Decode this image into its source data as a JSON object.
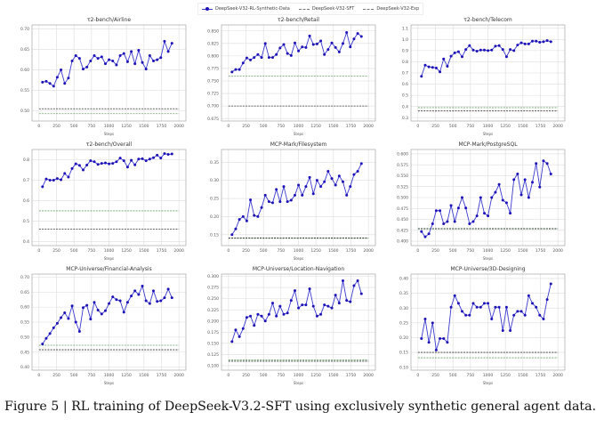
{
  "legend": {
    "main": "DeepSeek-V32-RL-Synthetic-Data",
    "sft": "DeepSeek-V32-SFT",
    "exp": "DeepSeek-V32-Exp"
  },
  "caption": "Figure 5 | RL training of DeepSeek-V3.2-SFT using exclusively synthetic general agent data.",
  "colors": {
    "main_line": "#3a3acf",
    "main_marker": "#1d12b8",
    "sft": "#333333",
    "exp": "#6aa06a",
    "grid": "#dddddd"
  },
  "chart_data": [
    {
      "type": "line",
      "title": "τ2-bench/Airline",
      "xlabel": "Steps",
      "xlim": [
        -100,
        2100
      ],
      "xticks": [
        0,
        250,
        500,
        750,
        1000,
        1250,
        1500,
        1750,
        2000
      ],
      "ylim": [
        0.475,
        0.71
      ],
      "yticks": [
        0.5,
        0.55,
        0.6,
        0.65,
        0.7
      ],
      "ydec": 2,
      "grid": true,
      "x": [
        50,
        103,
        156,
        209,
        261,
        314,
        367,
        420,
        473,
        526,
        579,
        631,
        684,
        737,
        790,
        843,
        896,
        949,
        1001,
        1054,
        1107,
        1160,
        1213,
        1266,
        1319,
        1371,
        1424,
        1477,
        1530,
        1583,
        1636,
        1689,
        1741,
        1794,
        1847,
        1900
      ],
      "series": [
        {
          "name": "DeepSeek-V32-RL-Synthetic-Data",
          "values": [
            0.57,
            0.572,
            0.567,
            0.56,
            0.582,
            0.6,
            0.567,
            0.58,
            0.622,
            0.635,
            0.628,
            0.602,
            0.607,
            0.622,
            0.635,
            0.628,
            0.632,
            0.615,
            0.625,
            0.622,
            0.612,
            0.635,
            0.64,
            0.62,
            0.645,
            0.615,
            0.648,
            0.618,
            0.602,
            0.635,
            0.622,
            0.625,
            0.63,
            0.67,
            0.645,
            0.665
          ]
        }
      ],
      "baselines": {
        "sft": 0.505,
        "exp": 0.493
      }
    },
    {
      "type": "line",
      "title": "τ2-bench/Retail",
      "xlabel": "Steps",
      "xlim": [
        -100,
        2100
      ],
      "xticks": [
        0,
        250,
        500,
        750,
        1000,
        1250,
        1500,
        1750,
        2000
      ],
      "ylim": [
        0.67,
        0.862
      ],
      "yticks": [
        0.675,
        0.7,
        0.725,
        0.75,
        0.775,
        0.8,
        0.825,
        0.85
      ],
      "ydec": 3,
      "grid": true,
      "x": [
        50,
        103,
        156,
        209,
        261,
        314,
        367,
        420,
        473,
        526,
        579,
        631,
        684,
        737,
        790,
        843,
        896,
        949,
        1001,
        1054,
        1107,
        1160,
        1213,
        1266,
        1319,
        1371,
        1424,
        1477,
        1530,
        1583,
        1636,
        1689,
        1741,
        1794,
        1847,
        1900
      ],
      "series": [
        {
          "name": "DeepSeek-V32-RL-Synthetic-Data",
          "values": [
            0.768,
            0.773,
            0.773,
            0.786,
            0.796,
            0.792,
            0.797,
            0.803,
            0.797,
            0.825,
            0.797,
            0.797,
            0.803,
            0.816,
            0.823,
            0.805,
            0.801,
            0.826,
            0.81,
            0.818,
            0.817,
            0.84,
            0.823,
            0.824,
            0.83,
            0.803,
            0.813,
            0.826,
            0.817,
            0.808,
            0.825,
            0.847,
            0.818,
            0.834,
            0.845,
            0.839
          ]
        }
      ],
      "baselines": {
        "sft": 0.7,
        "exp": 0.76
      }
    },
    {
      "type": "line",
      "title": "τ2-bench/Telecom",
      "xlabel": "Steps",
      "xlim": [
        -100,
        2100
      ],
      "xticks": [
        0,
        250,
        500,
        750,
        1000,
        1250,
        1500,
        1750,
        2000
      ],
      "ylim": [
        0.27,
        1.13
      ],
      "yticks": [
        0.3,
        0.4,
        0.5,
        0.6,
        0.7,
        0.8,
        0.9,
        1.0,
        1.1
      ],
      "ydec": 1,
      "grid": true,
      "x": [
        50,
        103,
        156,
        209,
        261,
        314,
        367,
        420,
        473,
        526,
        579,
        631,
        684,
        737,
        790,
        843,
        896,
        949,
        1001,
        1054,
        1107,
        1160,
        1213,
        1266,
        1319,
        1371,
        1424,
        1477,
        1530,
        1583,
        1636,
        1689,
        1741,
        1794,
        1847,
        1900
      ],
      "series": [
        {
          "name": "DeepSeek-V32-RL-Synthetic-Data",
          "values": [
            0.67,
            0.77,
            0.755,
            0.75,
            0.745,
            0.71,
            0.825,
            0.76,
            0.85,
            0.88,
            0.89,
            0.845,
            0.91,
            0.945,
            0.905,
            0.895,
            0.905,
            0.905,
            0.9,
            0.905,
            0.94,
            0.945,
            0.91,
            0.845,
            0.91,
            0.9,
            0.95,
            0.97,
            0.96,
            0.96,
            0.985,
            0.985,
            0.975,
            0.98,
            0.99,
            0.98
          ]
        }
      ],
      "baselines": {
        "sft": 0.36,
        "exp": 0.39
      }
    },
    {
      "type": "line",
      "title": "τ2-bench/Overall",
      "xlabel": "Steps",
      "xlim": [
        -100,
        2100
      ],
      "xticks": [
        0,
        250,
        500,
        750,
        1000,
        1250,
        1500,
        1750,
        2000
      ],
      "ylim": [
        0.38,
        0.85
      ],
      "yticks": [
        0.4,
        0.5,
        0.6,
        0.7,
        0.8
      ],
      "ydec": 1,
      "grid": true,
      "x": [
        50,
        103,
        156,
        209,
        261,
        314,
        367,
        420,
        473,
        526,
        579,
        631,
        684,
        737,
        790,
        843,
        896,
        949,
        1001,
        1054,
        1107,
        1160,
        1213,
        1266,
        1319,
        1371,
        1424,
        1477,
        1530,
        1583,
        1636,
        1689,
        1741,
        1794,
        1847,
        1900
      ],
      "series": [
        {
          "name": "DeepSeek-V32-RL-Synthetic-Data",
          "values": [
            0.668,
            0.706,
            0.7,
            0.7,
            0.708,
            0.702,
            0.733,
            0.715,
            0.757,
            0.78,
            0.772,
            0.75,
            0.774,
            0.795,
            0.79,
            0.777,
            0.782,
            0.784,
            0.78,
            0.782,
            0.79,
            0.808,
            0.795,
            0.764,
            0.797,
            0.775,
            0.803,
            0.805,
            0.795,
            0.803,
            0.81,
            0.822,
            0.808,
            0.83,
            0.826,
            0.828
          ]
        }
      ],
      "baselines": {
        "sft": 0.46,
        "exp": 0.55
      }
    },
    {
      "type": "line",
      "title": "MCP-Mark/Filesystem",
      "xlabel": "Steps",
      "xlim": [
        -100,
        2100
      ],
      "xticks": [
        0,
        250,
        500,
        750,
        1000,
        1250,
        1500,
        1750,
        2000
      ],
      "ylim": [
        0.12,
        0.385
      ],
      "yticks": [
        0.15,
        0.2,
        0.25,
        0.3,
        0.35
      ],
      "ydec": 2,
      "grid": true,
      "x": [
        50,
        103,
        156,
        209,
        261,
        314,
        367,
        420,
        473,
        526,
        579,
        631,
        684,
        737,
        790,
        843,
        896,
        949,
        1001,
        1054,
        1107,
        1160,
        1213,
        1266,
        1319,
        1371,
        1424,
        1477,
        1530,
        1583,
        1636,
        1689,
        1741,
        1794,
        1847,
        1900
      ],
      "series": [
        {
          "name": "DeepSeek-V32-RL-Synthetic-Data",
          "values": [
            0.15,
            0.166,
            0.192,
            0.2,
            0.188,
            0.246,
            0.203,
            0.2,
            0.225,
            0.259,
            0.241,
            0.238,
            0.275,
            0.241,
            0.283,
            0.241,
            0.245,
            0.259,
            0.287,
            0.259,
            0.283,
            0.308,
            0.263,
            0.3,
            0.283,
            0.296,
            0.325,
            0.305,
            0.287,
            0.312,
            0.296,
            0.259,
            0.283,
            0.316,
            0.325,
            0.346
          ]
        }
      ],
      "baselines": {
        "sft": 0.141,
        "exp": 0.14
      }
    },
    {
      "type": "line",
      "title": "MCP-Mark/PostgreSQL",
      "xlabel": "Steps",
      "xlim": [
        -100,
        2100
      ],
      "xticks": [
        0,
        250,
        500,
        750,
        1000,
        1250,
        1500,
        1750,
        2000
      ],
      "ylim": [
        0.39,
        0.61
      ],
      "yticks": [
        0.4,
        0.425,
        0.45,
        0.475,
        0.5,
        0.525,
        0.55,
        0.575,
        0.6
      ],
      "ydec": 3,
      "grid": true,
      "x": [
        50,
        103,
        156,
        209,
        261,
        314,
        367,
        420,
        473,
        526,
        579,
        631,
        684,
        737,
        790,
        843,
        896,
        949,
        1001,
        1054,
        1107,
        1160,
        1213,
        1266,
        1319,
        1371,
        1424,
        1477,
        1530,
        1583,
        1636,
        1689,
        1741,
        1794,
        1847,
        1900
      ],
      "series": [
        {
          "name": "DeepSeek-V32-RL-Synthetic-Data",
          "values": [
            0.422,
            0.41,
            0.417,
            0.44,
            0.47,
            0.47,
            0.44,
            0.445,
            0.482,
            0.445,
            0.476,
            0.5,
            0.476,
            0.44,
            0.445,
            0.458,
            0.5,
            0.464,
            0.458,
            0.5,
            0.512,
            0.53,
            0.494,
            0.488,
            0.464,
            0.541,
            0.554,
            0.506,
            0.541,
            0.5,
            0.535,
            0.578,
            0.524,
            0.584,
            0.578,
            0.554
          ]
        }
      ],
      "baselines": {
        "sft": 0.429,
        "exp": 0.428
      }
    },
    {
      "type": "line",
      "title": "MCP-Universe/Financial-Analysis",
      "xlabel": "Steps",
      "xlim": [
        -100,
        2100
      ],
      "xticks": [
        0,
        250,
        500,
        750,
        1000,
        1250,
        1500,
        1750,
        2000
      ],
      "ylim": [
        0.39,
        0.71
      ],
      "yticks": [
        0.4,
        0.45,
        0.5,
        0.55,
        0.6,
        0.65,
        0.7
      ],
      "ydec": 2,
      "grid": true,
      "x": [
        50,
        103,
        156,
        209,
        261,
        314,
        367,
        420,
        473,
        526,
        579,
        631,
        684,
        737,
        790,
        843,
        896,
        949,
        1001,
        1054,
        1107,
        1160,
        1213,
        1266,
        1319,
        1371,
        1424,
        1477,
        1530,
        1583,
        1636,
        1689,
        1741,
        1794,
        1847,
        1900
      ],
      "series": [
        {
          "name": "DeepSeek-V32-RL-Synthetic-Data",
          "values": [
            0.477,
            0.496,
            0.512,
            0.531,
            0.546,
            0.565,
            0.581,
            0.562,
            0.604,
            0.55,
            0.519,
            0.598,
            0.606,
            0.56,
            0.616,
            0.59,
            0.577,
            0.588,
            0.612,
            0.634,
            0.625,
            0.621,
            0.583,
            0.616,
            0.637,
            0.654,
            0.642,
            0.67,
            0.621,
            0.612,
            0.654,
            0.619,
            0.621,
            0.631,
            0.66,
            0.631
          ]
        }
      ],
      "baselines": {
        "sft": 0.458,
        "exp": 0.473
      }
    },
    {
      "type": "line",
      "title": "MCP-Universe/Location-Navigation",
      "xlabel": "Steps",
      "xlim": [
        -100,
        2100
      ],
      "xticks": [
        0,
        250,
        500,
        750,
        1000,
        1250,
        1500,
        1750,
        2000
      ],
      "ylim": [
        0.09,
        0.305
      ],
      "yticks": [
        0.1,
        0.125,
        0.15,
        0.175,
        0.2,
        0.225,
        0.25,
        0.275,
        0.3
      ],
      "ydec": 3,
      "grid": true,
      "x": [
        50,
        103,
        156,
        209,
        261,
        314,
        367,
        420,
        473,
        526,
        579,
        631,
        684,
        737,
        790,
        843,
        896,
        949,
        1001,
        1054,
        1107,
        1160,
        1213,
        1266,
        1319,
        1371,
        1424,
        1477,
        1530,
        1583,
        1636,
        1689,
        1741,
        1794,
        1847,
        1900
      ],
      "series": [
        {
          "name": "DeepSeek-V32-RL-Synthetic-Data",
          "values": [
            0.154,
            0.18,
            0.165,
            0.183,
            0.208,
            0.211,
            0.19,
            0.215,
            0.211,
            0.2,
            0.215,
            0.24,
            0.211,
            0.233,
            0.215,
            0.218,
            0.246,
            0.268,
            0.229,
            0.236,
            0.236,
            0.272,
            0.233,
            0.211,
            0.215,
            0.236,
            0.233,
            0.229,
            0.258,
            0.24,
            0.29,
            0.246,
            0.243,
            0.279,
            0.29,
            0.261
          ]
        }
      ],
      "baselines": {
        "sft": 0.11,
        "exp": 0.113
      }
    },
    {
      "type": "line",
      "title": "MCP-Universe/3D-Designing",
      "xlabel": "Steps",
      "xlim": [
        -100,
        2100
      ],
      "xticks": [
        0,
        250,
        500,
        750,
        1000,
        1250,
        1500,
        1750,
        2000
      ],
      "ylim": [
        0.09,
        0.415
      ],
      "yticks": [
        0.1,
        0.15,
        0.2,
        0.25,
        0.3,
        0.35,
        0.4
      ],
      "ydec": 2,
      "grid": true,
      "x": [
        50,
        103,
        156,
        209,
        261,
        314,
        367,
        420,
        473,
        526,
        579,
        631,
        684,
        737,
        790,
        843,
        896,
        949,
        1001,
        1054,
        1107,
        1160,
        1213,
        1266,
        1319,
        1371,
        1424,
        1477,
        1530,
        1583,
        1636,
        1689,
        1741,
        1794,
        1847,
        1900
      ],
      "series": [
        {
          "name": "DeepSeek-V32-RL-Synthetic-Data",
          "values": [
            0.197,
            0.263,
            0.184,
            0.25,
            0.158,
            0.197,
            0.197,
            0.184,
            0.303,
            0.342,
            0.316,
            0.289,
            0.276,
            0.276,
            0.316,
            0.303,
            0.303,
            0.316,
            0.316,
            0.263,
            0.303,
            0.303,
            0.224,
            0.303,
            0.224,
            0.276,
            0.289,
            0.289,
            0.276,
            0.342,
            0.316,
            0.303,
            0.276,
            0.263,
            0.329,
            0.382
          ]
        }
      ],
      "baselines": {
        "sft": 0.15,
        "exp": 0.132
      }
    }
  ]
}
